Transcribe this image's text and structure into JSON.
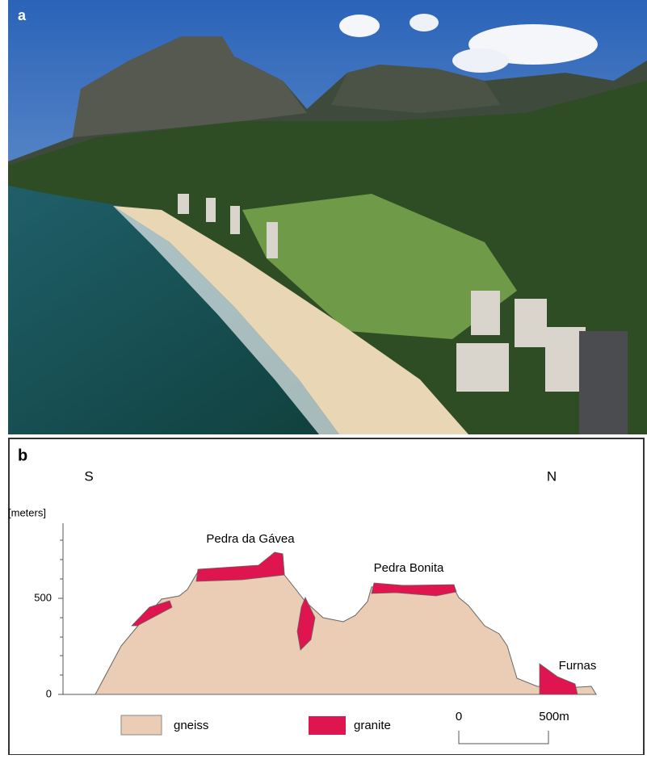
{
  "panel_a": {
    "label": "a"
  },
  "panel_b": {
    "label": "b",
    "directions": [
      "S",
      "N"
    ],
    "axis": {
      "unit": "[meters]",
      "ticks": [
        "500",
        "0"
      ]
    },
    "peaks": [
      "Pedra da Gávea",
      "Pedra Bonita",
      "Furnas"
    ],
    "legend": [
      "gneiss",
      "granite"
    ],
    "scale_bar": [
      "0",
      "500m"
    ]
  }
}
